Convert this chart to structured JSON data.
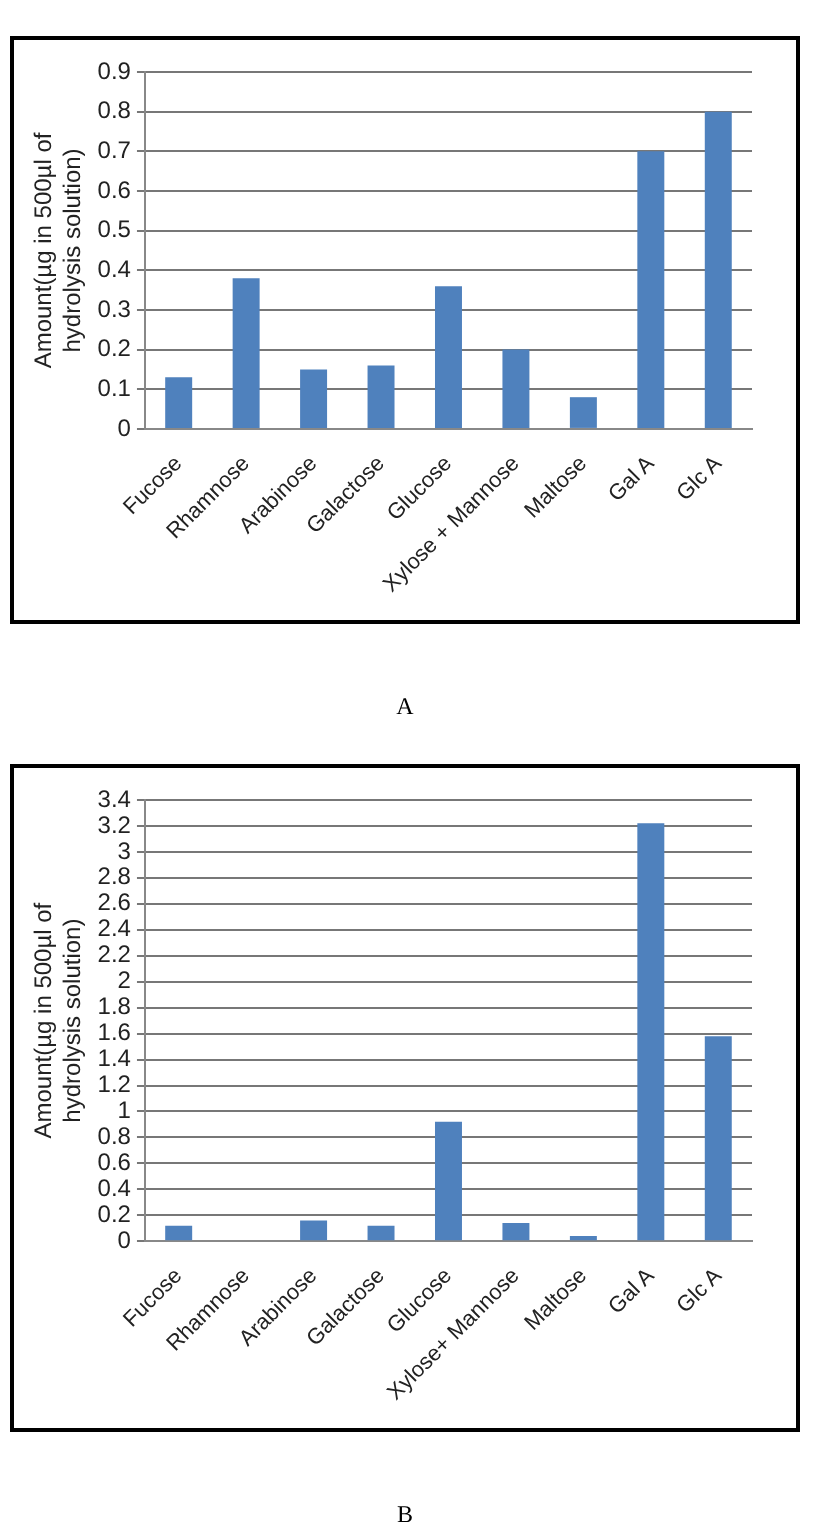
{
  "chart_data": [
    {
      "type": "bar",
      "ylabel": "Amount(µg in 500µl of hydrolysis solution)",
      "categories": [
        "Fucose",
        "Rhamnose",
        "Arabinose",
        "Galactose",
        "Glucose",
        "Xylose + Mannose",
        "Maltose",
        "Gal A",
        "Glc A"
      ],
      "values": [
        0.13,
        0.38,
        0.15,
        0.16,
        0.36,
        0.2,
        0.08,
        0.7,
        0.8
      ],
      "color": "#4f81bd",
      "ylim": [
        0,
        0.9
      ],
      "yticks": [
        0,
        0.1,
        0.2,
        0.3,
        0.4,
        0.5,
        0.6,
        0.7,
        0.8,
        0.9
      ],
      "grid": "y",
      "legend": false,
      "annotations": [
        "A"
      ]
    },
    {
      "type": "bar",
      "ylabel": "Amount(µg in 500µl of hydrolysis solution)",
      "categories": [
        "Fucose",
        "Rhamnose",
        "Arabinose",
        "Galactose",
        "Glucose",
        "Xylose+ Mannose",
        "Maltose",
        "Gal A",
        "Glc A"
      ],
      "values": [
        0.12,
        0,
        0.16,
        0.12,
        0.92,
        0.14,
        0.04,
        3.22,
        1.58
      ],
      "color": "#4f81bd",
      "ylim": [
        0,
        3.4
      ],
      "yticks": [
        0,
        0.2,
        0.4,
        0.6,
        0.8,
        1,
        1.2,
        1.4,
        1.6,
        1.8,
        2,
        2.2,
        2.4,
        2.6,
        2.8,
        3,
        3.2,
        3.4
      ],
      "grid": "y",
      "legend": false,
      "annotations": [
        "B"
      ]
    }
  ]
}
